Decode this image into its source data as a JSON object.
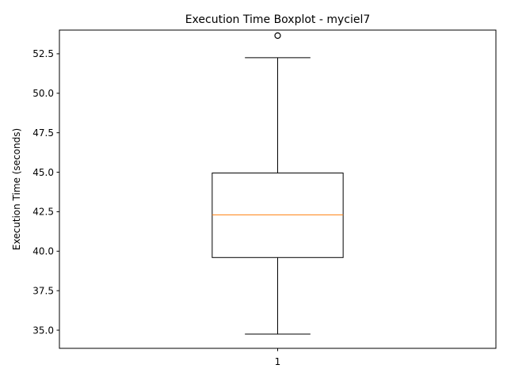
{
  "chart_data": {
    "type": "boxplot",
    "title": "Execution Time Boxplot - myciel7",
    "xlabel": "",
    "ylabel": "Execution Time (seconds)",
    "categories": [
      "1"
    ],
    "ylim": [
      33.85,
      54.0
    ],
    "yticks": [
      35.0,
      37.5,
      40.0,
      42.5,
      45.0,
      47.5,
      50.0,
      52.5
    ],
    "ytick_labels": [
      "35.0",
      "37.5",
      "40.0",
      "42.5",
      "45.0",
      "47.5",
      "50.0",
      "52.5"
    ],
    "grid": false,
    "boxes": [
      {
        "label": "1",
        "whisker_low": 34.75,
        "q1": 39.6,
        "median": 42.3,
        "q3": 44.95,
        "whisker_high": 52.25,
        "outliers": [
          53.65
        ]
      }
    ],
    "colors": {
      "box": "#000000",
      "median": "#ff7f0e",
      "whisker": "#000000",
      "outlier": "#000000"
    }
  }
}
